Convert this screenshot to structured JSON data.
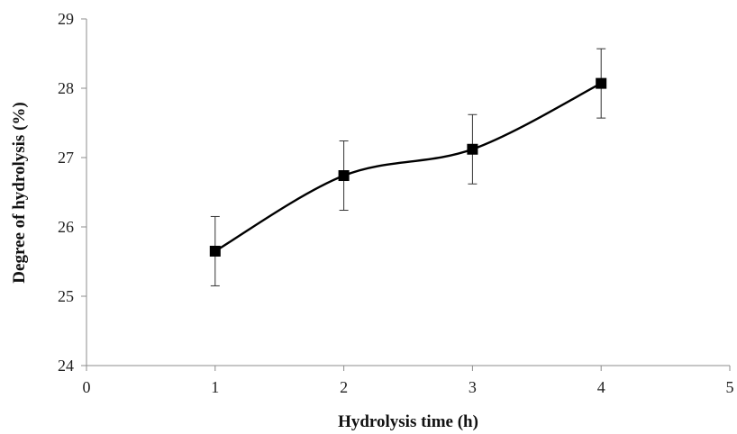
{
  "chart_data": {
    "type": "line",
    "title": "",
    "xlabel": "Hydrolysis time (h)",
    "ylabel": "Degree of hydrolysis (%)",
    "xlim": [
      0,
      5
    ],
    "ylim": [
      24,
      29
    ],
    "xticks": [
      0,
      1,
      2,
      3,
      4,
      5
    ],
    "yticks": [
      24,
      25,
      26,
      27,
      28,
      29
    ],
    "grid": false,
    "legend": "none",
    "smoothed": true,
    "marker": "square",
    "series": [
      {
        "x": [
          1,
          2,
          3,
          4
        ],
        "y": [
          25.65,
          26.74,
          27.12,
          28.07
        ],
        "error": [
          0.5,
          0.5,
          0.5,
          0.5
        ],
        "color": "#000000"
      }
    ]
  }
}
